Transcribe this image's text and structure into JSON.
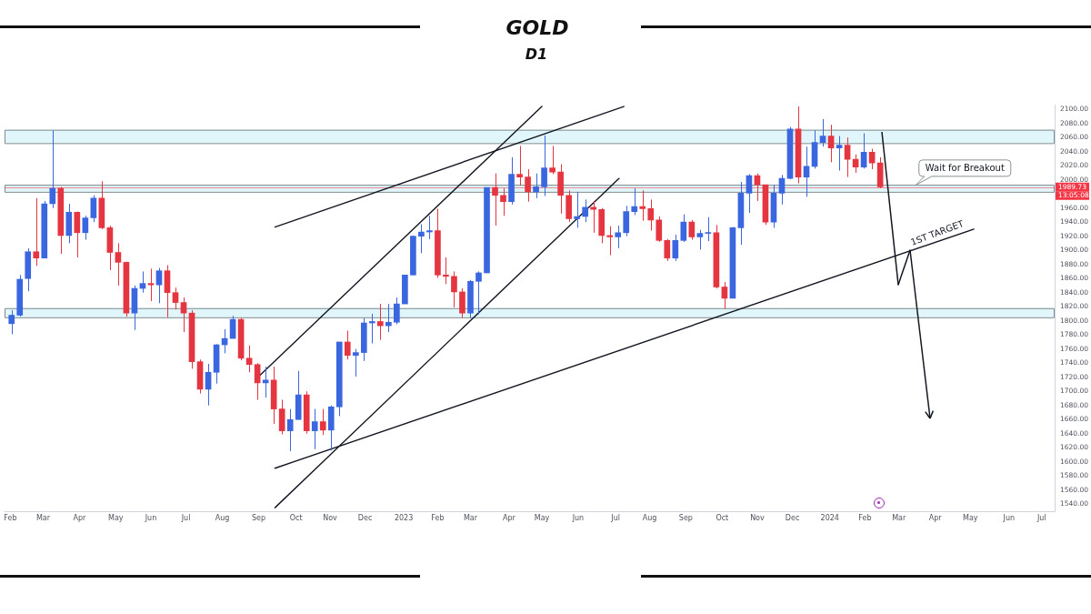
{
  "chart_data": {
    "type": "candlestick",
    "title": "GOLD",
    "subtitle": "D1",
    "x": [
      "2022-02-02",
      "2022-02-09",
      "2022-02-16",
      "2022-02-23",
      "2022-03-02",
      "2022-03-09",
      "2022-03-16",
      "2022-03-23",
      "2022-03-30",
      "2022-04-06",
      "2022-04-13",
      "2022-04-20",
      "2022-04-27",
      "2022-05-04",
      "2022-05-11",
      "2022-05-18",
      "2022-05-25",
      "2022-06-01",
      "2022-06-08",
      "2022-06-15",
      "2022-06-22",
      "2022-06-29",
      "2022-07-06",
      "2022-07-13",
      "2022-07-20",
      "2022-07-27",
      "2022-08-03",
      "2022-08-10",
      "2022-08-17",
      "2022-08-24",
      "2022-08-31",
      "2022-09-07",
      "2022-09-14",
      "2022-09-21",
      "2022-09-28",
      "2022-10-05",
      "2022-10-12",
      "2022-10-19",
      "2022-10-26",
      "2022-11-02",
      "2022-11-09",
      "2022-11-16",
      "2022-11-23",
      "2022-11-30",
      "2022-12-07",
      "2022-12-14",
      "2022-12-21",
      "2022-12-28",
      "2023-01-04",
      "2023-01-11",
      "2023-01-18",
      "2023-01-25",
      "2023-02-01",
      "2023-02-08",
      "2023-02-15",
      "2023-02-22",
      "2023-03-01",
      "2023-03-08",
      "2023-03-15",
      "2023-03-22",
      "2023-03-29",
      "2023-04-05",
      "2023-04-12",
      "2023-04-19",
      "2023-04-26",
      "2023-05-03",
      "2023-05-10",
      "2023-05-17",
      "2023-05-24",
      "2023-05-31",
      "2023-06-07",
      "2023-06-14",
      "2023-06-21",
      "2023-06-28",
      "2023-07-05",
      "2023-07-12",
      "2023-07-19",
      "2023-07-26",
      "2023-08-02",
      "2023-08-09",
      "2023-08-16",
      "2023-08-23",
      "2023-08-30",
      "2023-09-06",
      "2023-09-13",
      "2023-09-20",
      "2023-09-27",
      "2023-10-04",
      "2023-10-11",
      "2023-10-18",
      "2023-10-25",
      "2023-11-01",
      "2023-11-08",
      "2023-11-15",
      "2023-11-22",
      "2023-11-29",
      "2023-12-06",
      "2023-12-13",
      "2023-12-20",
      "2023-12-27",
      "2024-01-03",
      "2024-01-10",
      "2024-01-17",
      "2024-01-24",
      "2024-01-31",
      "2024-02-07",
      "2024-02-14"
    ],
    "ohlc": [
      [
        1796,
        1815,
        1781,
        1808
      ],
      [
        1808,
        1865,
        1806,
        1859
      ],
      [
        1860,
        1903,
        1842,
        1898
      ],
      [
        1898,
        1974,
        1878,
        1889
      ],
      [
        1889,
        1970,
        1889,
        1966
      ],
      [
        1966,
        2070,
        1960,
        1988
      ],
      [
        1988,
        1990,
        1895,
        1921
      ],
      [
        1921,
        1966,
        1910,
        1954
      ],
      [
        1954,
        1955,
        1890,
        1925
      ],
      [
        1925,
        1949,
        1915,
        1946
      ],
      [
        1946,
        1978,
        1940,
        1974
      ],
      [
        1974,
        1998,
        1930,
        1932
      ],
      [
        1932,
        1935,
        1872,
        1897
      ],
      [
        1897,
        1910,
        1850,
        1883
      ],
      [
        1883,
        1884,
        1806,
        1811
      ],
      [
        1811,
        1850,
        1787,
        1846
      ],
      [
        1846,
        1870,
        1840,
        1853
      ],
      [
        1853,
        1874,
        1828,
        1851
      ],
      [
        1851,
        1875,
        1825,
        1871
      ],
      [
        1871,
        1879,
        1805,
        1840
      ],
      [
        1840,
        1847,
        1816,
        1826
      ],
      [
        1826,
        1833,
        1784,
        1811
      ],
      [
        1811,
        1815,
        1732,
        1742
      ],
      [
        1742,
        1745,
        1697,
        1703
      ],
      [
        1703,
        1739,
        1680,
        1727
      ],
      [
        1727,
        1767,
        1711,
        1766
      ],
      [
        1766,
        1788,
        1754,
        1775
      ],
      [
        1775,
        1807,
        1775,
        1802
      ],
      [
        1802,
        1804,
        1744,
        1747
      ],
      [
        1747,
        1765,
        1727,
        1738
      ],
      [
        1738,
        1740,
        1688,
        1712
      ],
      [
        1712,
        1735,
        1691,
        1716
      ],
      [
        1716,
        1735,
        1654,
        1675
      ],
      [
        1675,
        1688,
        1639,
        1644
      ],
      [
        1644,
        1675,
        1615,
        1660
      ],
      [
        1660,
        1729,
        1660,
        1695
      ],
      [
        1695,
        1700,
        1640,
        1644
      ],
      [
        1644,
        1675,
        1618,
        1657
      ],
      [
        1657,
        1675,
        1638,
        1645
      ],
      [
        1645,
        1680,
        1616,
        1678
      ],
      [
        1678,
        1770,
        1665,
        1770
      ],
      [
        1770,
        1786,
        1745,
        1751
      ],
      [
        1751,
        1760,
        1721,
        1755
      ],
      [
        1755,
        1804,
        1743,
        1797
      ],
      [
        1797,
        1810,
        1768,
        1799
      ],
      [
        1799,
        1824,
        1773,
        1793
      ],
      [
        1793,
        1824,
        1784,
        1798
      ],
      [
        1798,
        1833,
        1795,
        1824
      ],
      [
        1824,
        1865,
        1824,
        1865
      ],
      [
        1865,
        1921,
        1865,
        1920
      ],
      [
        1920,
        1937,
        1896,
        1926
      ],
      [
        1926,
        1949,
        1916,
        1928
      ],
      [
        1928,
        1959,
        1861,
        1865
      ],
      [
        1865,
        1890,
        1852,
        1863
      ],
      [
        1863,
        1870,
        1819,
        1841
      ],
      [
        1841,
        1846,
        1804,
        1811
      ],
      [
        1811,
        1858,
        1804,
        1856
      ],
      [
        1856,
        1870,
        1809,
        1868
      ],
      [
        1868,
        1989,
        1868,
        1989
      ],
      [
        1989,
        2009,
        1935,
        1978
      ],
      [
        1978,
        1988,
        1949,
        1969
      ],
      [
        1969,
        2032,
        1965,
        2008
      ],
      [
        2008,
        2048,
        1992,
        2004
      ],
      [
        2004,
        2015,
        1969,
        1983
      ],
      [
        1983,
        2009,
        1974,
        1990
      ],
      [
        1990,
        2063,
        1977,
        2017
      ],
      [
        2017,
        2048,
        2008,
        2011
      ],
      [
        2011,
        2022,
        1952,
        1978
      ],
      [
        1978,
        1985,
        1940,
        1945
      ],
      [
        1945,
        1983,
        1932,
        1948
      ],
      [
        1948,
        1972,
        1940,
        1961
      ],
      [
        1961,
        1970,
        1925,
        1958
      ],
      [
        1958,
        1960,
        1910,
        1921
      ],
      [
        1921,
        1934,
        1893,
        1919
      ],
      [
        1919,
        1935,
        1903,
        1925
      ],
      [
        1925,
        1963,
        1920,
        1955
      ],
      [
        1955,
        1988,
        1950,
        1962
      ],
      [
        1962,
        1985,
        1942,
        1959
      ],
      [
        1959,
        1972,
        1928,
        1943
      ],
      [
        1943,
        1948,
        1912,
        1914
      ],
      [
        1914,
        1916,
        1885,
        1889
      ],
      [
        1889,
        1922,
        1885,
        1914
      ],
      [
        1914,
        1951,
        1912,
        1940
      ],
      [
        1940,
        1943,
        1915,
        1919
      ],
      [
        1919,
        1929,
        1901,
        1924
      ],
      [
        1924,
        1947,
        1913,
        1925
      ],
      [
        1925,
        1936,
        1846,
        1848
      ],
      [
        1848,
        1855,
        1817,
        1832
      ],
      [
        1832,
        1933,
        1832,
        1932
      ],
      [
        1932,
        1997,
        1908,
        1981
      ],
      [
        1981,
        2008,
        1953,
        2006
      ],
      [
        2006,
        2009,
        1970,
        1993
      ],
      [
        1993,
        1993,
        1936,
        1940
      ],
      [
        1940,
        1993,
        1932,
        1981
      ],
      [
        1981,
        2007,
        1965,
        2002
      ],
      [
        2002,
        2075,
        2001,
        2072
      ],
      [
        2072,
        2104,
        1995,
        2004
      ],
      [
        2004,
        2047,
        1976,
        2019
      ],
      [
        2019,
        2070,
        2016,
        2053
      ],
      [
        2053,
        2086,
        2047,
        2062
      ],
      [
        2062,
        2078,
        2025,
        2045
      ],
      [
        2045,
        2062,
        2013,
        2049
      ],
      [
        2049,
        2060,
        2004,
        2029
      ],
      [
        2029,
        2036,
        2010,
        2018
      ],
      [
        2018,
        2066,
        2016,
        2039
      ],
      [
        2039,
        2044,
        2015,
        2024
      ],
      [
        2024,
        2032,
        1988,
        1990
      ]
    ],
    "colors": [
      "#3a66e0",
      "#3a66e0",
      "#3a66e0",
      "#e53540",
      "#3a66e0",
      "#3a66e0",
      "#e53540",
      "#3a66e0",
      "#e53540",
      "#3a66e0",
      "#3a66e0",
      "#e53540",
      "#e53540",
      "#e53540",
      "#e53540",
      "#3a66e0",
      "#3a66e0",
      "#e53540",
      "#3a66e0",
      "#e53540",
      "#e53540",
      "#e53540",
      "#e53540",
      "#e53540",
      "#3a66e0",
      "#3a66e0",
      "#3a66e0",
      "#3a66e0",
      "#e53540",
      "#e53540",
      "#e53540",
      "#3a66e0",
      "#e53540",
      "#e53540",
      "#3a66e0",
      "#3a66e0",
      "#e53540",
      "#3a66e0",
      "#e53540",
      "#3a66e0",
      "#3a66e0",
      "#e53540",
      "#3a66e0",
      "#3a66e0",
      "#3a66e0",
      "#e53540",
      "#3a66e0",
      "#3a66e0",
      "#3a66e0",
      "#3a66e0",
      "#3a66e0",
      "#3a66e0",
      "#e53540",
      "#e53540",
      "#e53540",
      "#e53540",
      "#3a66e0",
      "#3a66e0",
      "#3a66e0",
      "#e53540",
      "#e53540",
      "#3a66e0",
      "#e53540",
      "#e53540",
      "#3a66e0",
      "#3a66e0",
      "#e53540",
      "#e53540",
      "#e53540",
      "#3a66e0",
      "#3a66e0",
      "#e53540",
      "#e53540",
      "#e53540",
      "#3a66e0",
      "#3a66e0",
      "#3a66e0",
      "#e53540",
      "#e53540",
      "#e53540",
      "#e53540",
      "#3a66e0",
      "#3a66e0",
      "#e53540",
      "#3a66e0",
      "#3a66e0",
      "#e53540",
      "#e53540",
      "#3a66e0",
      "#3a66e0",
      "#3a66e0",
      "#e53540",
      "#e53540",
      "#3a66e0",
      "#3a66e0",
      "#3a66e0",
      "#e53540",
      "#3a66e0",
      "#3a66e0",
      "#3a66e0",
      "#e53540",
      "#3a66e0",
      "#e53540",
      "#e53540",
      "#3a66e0",
      "#e53540",
      "#e53540"
    ],
    "series": [
      {
        "type": "line",
        "color": "#131722",
        "x": [
          "2022-09-01",
          "2023-05-01"
        ],
        "values": [
          1721,
          2104
        ]
      },
      {
        "type": "line",
        "color": "#131722",
        "x": [
          "2022-09-15",
          "2023-07-06"
        ],
        "values": [
          1535,
          2002
        ]
      },
      {
        "type": "line",
        "color": "#131722",
        "x": [
          "2022-09-15",
          "2023-07-10"
        ],
        "values": [
          1933,
          2104
        ]
      },
      {
        "type": "line",
        "color": "#131722",
        "x": [
          "2022-09-15",
          "2024-05-04"
        ],
        "values": [
          1591,
          1930
        ]
      }
    ],
    "bands": [
      {
        "axis": "y",
        "from": 2052,
        "to": 2071,
        "color": "#e0f6fa"
      },
      {
        "axis": "y",
        "from": 1983,
        "to": 1993,
        "color": "#e0f6fa"
      },
      {
        "axis": "y",
        "from": 1805,
        "to": 1818,
        "color": "#e0f6fa"
      }
    ],
    "ref_lines": [
      {
        "axis": "y",
        "value": 1989.73,
        "label": "1989.73",
        "color": "#f23645"
      }
    ],
    "annotations": [
      {
        "text": "Wait for Breakout",
        "x": "2024-03-15",
        "y": 1992
      },
      {
        "text": "1ST TARGET",
        "x": "2024-04-05",
        "y": 1914
      },
      "13:05:08"
    ],
    "xlim": [
      "2022-01-27",
      "2024-07-12"
    ],
    "xticks": [
      {
        "value": "2022-02-01",
        "label": "Feb"
      },
      {
        "value": "2022-03-01",
        "label": "Mar"
      },
      {
        "value": "2022-04-01",
        "label": "Apr"
      },
      {
        "value": "2022-05-02",
        "label": "May"
      },
      {
        "value": "2022-06-01",
        "label": "Jun"
      },
      {
        "value": "2022-07-01",
        "label": "Jul"
      },
      {
        "value": "2022-08-01",
        "label": "Aug"
      },
      {
        "value": "2022-09-01",
        "label": "Sep"
      },
      {
        "value": "2022-10-03",
        "label": "Oct"
      },
      {
        "value": "2022-11-01",
        "label": "Nov"
      },
      {
        "value": "2022-12-01",
        "label": "Dec"
      },
      {
        "value": "2023-01-03",
        "label": "2023"
      },
      {
        "value": "2023-02-01",
        "label": "Feb"
      },
      {
        "value": "2023-03-01",
        "label": "Mar"
      },
      {
        "value": "2023-04-03",
        "label": "Apr"
      },
      {
        "value": "2023-05-01",
        "label": "May"
      },
      {
        "value": "2023-06-01",
        "label": "Jun"
      },
      {
        "value": "2023-07-03",
        "label": "Jul"
      },
      {
        "value": "2023-08-01",
        "label": "Aug"
      },
      {
        "value": "2023-09-01",
        "label": "Sep"
      },
      {
        "value": "2023-10-02",
        "label": "Oct"
      },
      {
        "value": "2023-11-01",
        "label": "Nov"
      },
      {
        "value": "2023-12-01",
        "label": "Dec"
      },
      {
        "value": "2024-01-02",
        "label": "2024"
      },
      {
        "value": "2024-02-01",
        "label": "Feb"
      },
      {
        "value": "2024-03-01",
        "label": "Mar"
      },
      {
        "value": "2024-04-01",
        "label": "Apr"
      },
      {
        "value": "2024-05-01",
        "label": "May"
      },
      {
        "value": "2024-06-03",
        "label": "Jun"
      },
      {
        "value": "2024-07-01",
        "label": "Jul"
      }
    ],
    "ylim": [
      1530,
      2106
    ],
    "yticks": [
      {
        "value": 1540,
        "label": "1540.00"
      },
      {
        "value": 1560,
        "label": "1560.00"
      },
      {
        "value": 1580,
        "label": "1580.00"
      },
      {
        "value": 1600,
        "label": "1600.00"
      },
      {
        "value": 1620,
        "label": "1620.00"
      },
      {
        "value": 1640,
        "label": "1640.00"
      },
      {
        "value": 1660,
        "label": "1660.00"
      },
      {
        "value": 1680,
        "label": "1680.00"
      },
      {
        "value": 1700,
        "label": "1700.00"
      },
      {
        "value": 1720,
        "label": "1720.00"
      },
      {
        "value": 1740,
        "label": "1740.00"
      },
      {
        "value": 1760,
        "label": "1760.00"
      },
      {
        "value": 1780,
        "label": "1780.00"
      },
      {
        "value": 1800,
        "label": "1800.00"
      },
      {
        "value": 1820,
        "label": "1820.00"
      },
      {
        "value": 1840,
        "label": "1840.00"
      },
      {
        "value": 1860,
        "label": "1860.00"
      },
      {
        "value": 1880,
        "label": "1880.00"
      },
      {
        "value": 1900,
        "label": "1900.00"
      },
      {
        "value": 1920,
        "label": "1920.00"
      },
      {
        "value": 1940,
        "label": "1940.00"
      },
      {
        "value": 1960,
        "label": "1960.00"
      },
      {
        "value": 2000,
        "label": "2000.00"
      },
      {
        "value": 2020,
        "label": "2020.00"
      },
      {
        "value": 2040,
        "label": "2040.00"
      },
      {
        "value": 2060,
        "label": "2060.00"
      },
      {
        "value": 2080,
        "label": "2080.00"
      },
      {
        "value": 2100,
        "label": "2100.00"
      }
    ]
  }
}
